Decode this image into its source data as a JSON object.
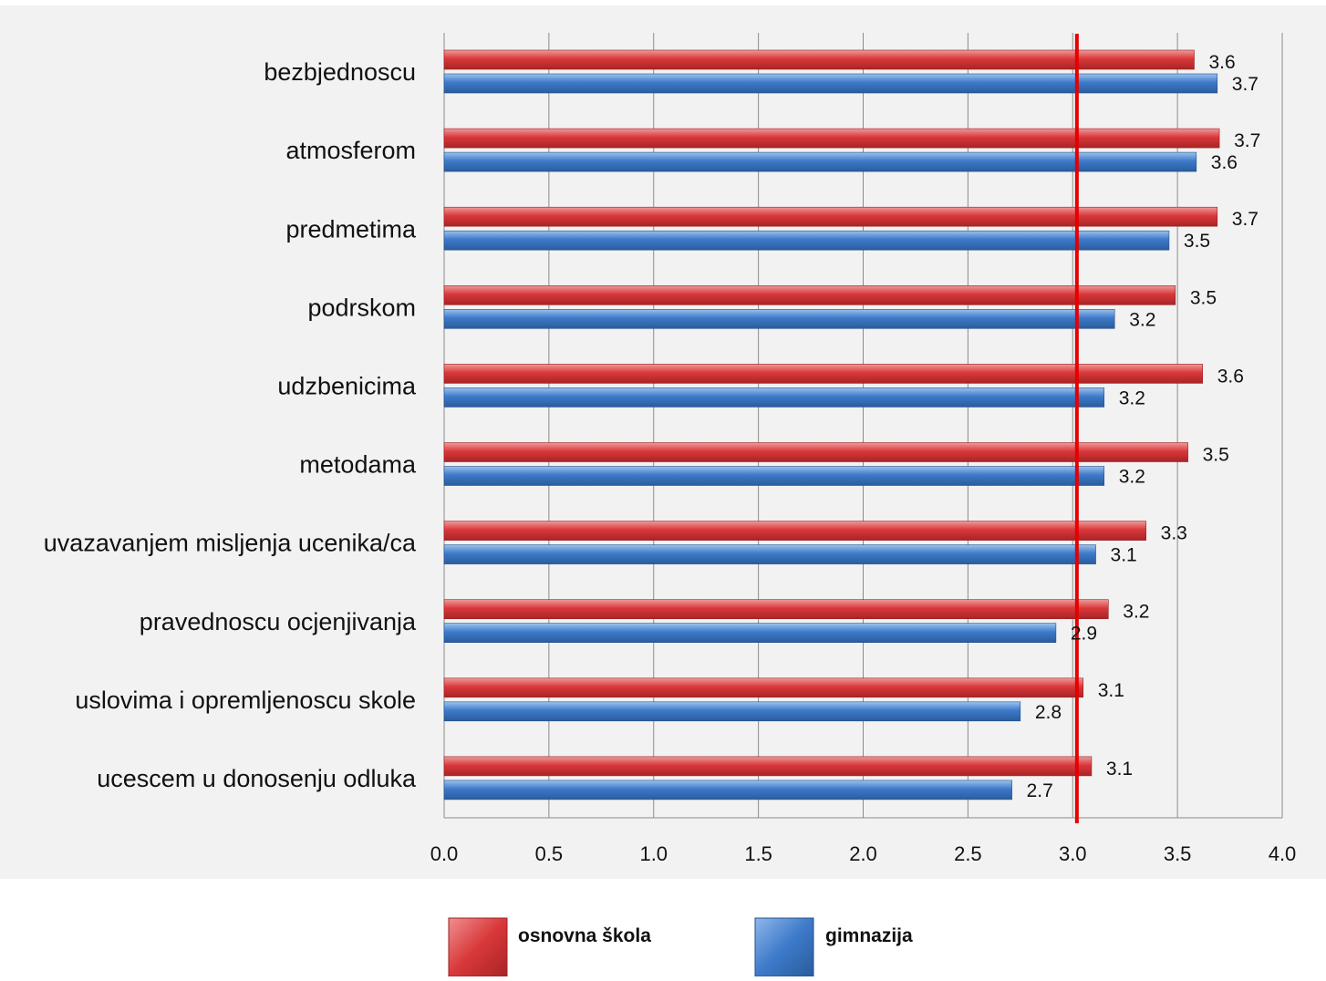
{
  "chart_data": {
    "type": "bar",
    "orientation": "horizontal",
    "categories": [
      "bezbjednoscu",
      "atmosferom",
      "predmetima",
      "podrskom ",
      "udzbenicima",
      "metodama",
      "uvazavanjem misljenja ucenika/ca",
      "pravednoscu ocjenjivanja",
      "uslovima i opremljenoscu skole",
      "ucescem u donosenju odluka"
    ],
    "series": [
      {
        "name": "osnovna škola",
        "color": "#d9383a",
        "values": [
          3.58,
          3.7,
          3.69,
          3.49,
          3.62,
          3.55,
          3.35,
          3.17,
          3.05,
          3.09
        ],
        "labels": [
          "3.6",
          "3.7",
          "3.7",
          "3.5",
          "3.6",
          "3.5",
          "3.3",
          "3.2",
          "3.1",
          "3.1"
        ]
      },
      {
        "name": "gimnazija",
        "color": "#3d7ac9",
        "values": [
          3.69,
          3.59,
          3.46,
          3.2,
          3.15,
          3.15,
          3.11,
          2.92,
          2.75,
          2.71
        ],
        "labels": [
          "3.7",
          "3.6",
          "3.5",
          "3.2",
          "3.2",
          "3.2",
          "3.1",
          "2.9",
          "2.8",
          "2.7"
        ]
      }
    ],
    "x_ticks": [
      "0.0",
      "0.5",
      "1.0",
      "1.5",
      "2.0",
      "2.5",
      "3.0",
      "3.5",
      "4.0"
    ],
    "xlim": [
      0,
      4
    ],
    "reference_line": {
      "value": 3.02,
      "color": "#e60000"
    },
    "title": "",
    "xlabel": "",
    "ylabel": "",
    "grid": "vertical",
    "legend_position": "bottom"
  }
}
